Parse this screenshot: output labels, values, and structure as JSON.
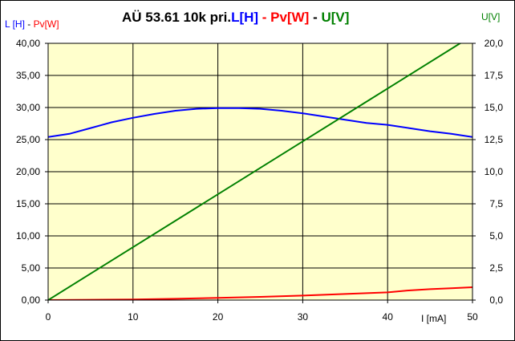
{
  "chart_data": {
    "type": "line",
    "title": {
      "prefix": "AÜ  53.61 10k pri.",
      "parts": [
        {
          "text": "L[H]",
          "color": "#0000ff"
        },
        {
          "text": " - ",
          "color": "#ff0000"
        },
        {
          "text": "Pv[W]",
          "color": "#ff0000"
        },
        {
          "text": " - ",
          "color": "#000000"
        },
        {
          "text": "U[V]",
          "color": "#008000"
        }
      ]
    },
    "y_left_label": {
      "parts": [
        {
          "text": "L [H]",
          "color": "#0000ff"
        },
        {
          "text": " - ",
          "color": "#000000"
        },
        {
          "text": "Pv[W]",
          "color": "#ff0000"
        }
      ]
    },
    "y_right_label": {
      "text": "U[V]",
      "color": "#008000"
    },
    "xlabel": "I [mA]",
    "xlim": [
      0,
      50
    ],
    "ylim_left": [
      0,
      40
    ],
    "ylim_right": [
      0,
      20
    ],
    "x_ticks": [
      "0",
      "10",
      "20",
      "30",
      "40",
      "50"
    ],
    "x_tick_values": [
      0,
      10,
      20,
      30,
      40,
      50
    ],
    "y_left_ticks": [
      "0,00",
      "5,00",
      "10,00",
      "15,00",
      "20,00",
      "25,00",
      "30,00",
      "35,00",
      "40,00"
    ],
    "y_left_tick_values": [
      0,
      5,
      10,
      15,
      20,
      25,
      30,
      35,
      40
    ],
    "y_right_ticks": [
      "0,0",
      "2,5",
      "5,0",
      "7,5",
      "10,0",
      "12,5",
      "15,0",
      "17,5",
      "20,0"
    ],
    "y_right_tick_values": [
      0,
      2.5,
      5,
      7.5,
      10,
      12.5,
      15,
      17.5,
      20
    ],
    "grid": true,
    "plot_background": "#ffffcc",
    "series": [
      {
        "name": "L[H]",
        "color": "#0000ff",
        "axis": "left",
        "x": [
          0,
          2.5,
          5,
          7.5,
          10,
          12.5,
          15,
          17.5,
          20,
          22.5,
          25,
          27.5,
          30,
          32.5,
          35,
          37.5,
          40,
          42.5,
          45,
          47.5,
          50
        ],
        "y": [
          25.4,
          25.9,
          26.8,
          27.7,
          28.4,
          29.0,
          29.5,
          29.8,
          29.9,
          29.9,
          29.8,
          29.5,
          29.1,
          28.6,
          28.1,
          27.6,
          27.3,
          26.8,
          26.3,
          25.9,
          25.4
        ]
      },
      {
        "name": "Pv[W]",
        "color": "#ff0000",
        "axis": "left",
        "x": [
          0,
          5,
          10,
          15,
          20,
          25,
          30,
          35,
          40,
          42.5,
          45,
          47.5,
          50
        ],
        "y": [
          0,
          0.05,
          0.1,
          0.2,
          0.35,
          0.5,
          0.7,
          0.95,
          1.2,
          1.5,
          1.7,
          1.85,
          2.0
        ]
      },
      {
        "name": "U[V]",
        "color": "#008000",
        "axis": "right",
        "x": [
          0,
          50
        ],
        "y": [
          0,
          20.6
        ]
      }
    ]
  }
}
